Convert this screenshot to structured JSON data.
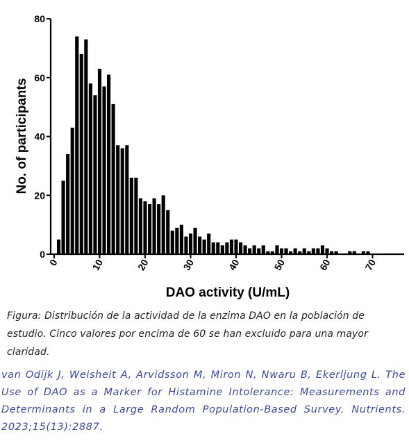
{
  "chart_data": {
    "type": "bar",
    "xlabel": "DAO activity (U/mL)",
    "ylabel": "No. of participants",
    "xlim": [
      -0.5,
      77
    ],
    "ylim": [
      0,
      80
    ],
    "x_ticks": [
      0,
      10,
      20,
      30,
      40,
      50,
      60,
      70
    ],
    "y_ticks": [
      0,
      20,
      40,
      60,
      80
    ],
    "bin_width": 1,
    "x": [
      1,
      2,
      3,
      4,
      5,
      6,
      7,
      8,
      9,
      10,
      11,
      12,
      13,
      14,
      15,
      16,
      17,
      18,
      19,
      20,
      21,
      22,
      23,
      24,
      25,
      26,
      27,
      28,
      29,
      30,
      31,
      32,
      33,
      34,
      35,
      36,
      37,
      38,
      39,
      40,
      41,
      42,
      43,
      44,
      45,
      46,
      47,
      48,
      49,
      50,
      51,
      52,
      53,
      54,
      55,
      56,
      57,
      58,
      59,
      60,
      61,
      62,
      63,
      64,
      65,
      66,
      67,
      68,
      69,
      70,
      71,
      72,
      73,
      74,
      75
    ],
    "values": [
      5,
      25,
      34,
      43,
      74,
      68,
      73,
      58,
      54,
      63,
      57,
      61,
      51,
      37,
      36,
      37,
      26,
      26,
      19,
      18,
      17,
      19,
      17,
      20,
      15,
      8,
      9,
      10,
      6,
      7,
      9,
      6,
      5,
      7,
      4,
      4,
      3,
      4,
      5,
      5,
      4,
      3,
      2,
      3,
      2,
      3,
      1,
      1,
      3,
      2,
      2,
      1,
      2,
      1,
      2,
      1,
      2,
      2,
      3,
      2,
      1,
      1,
      0,
      0,
      1,
      1,
      0,
      1,
      1,
      0,
      0,
      0,
      0,
      0,
      0
    ]
  },
  "caption": {
    "line1": "Figura: Distribución de la actividad de la enzima DAO en la población de",
    "line2": "estudio. Cinco valores por encima de 60 se han excluido para una mayor",
    "line3": "claridad."
  },
  "citation": {
    "text": "van Odijk J, Weisheit A, Arvidsson M, Miron N, Nwaru B, Ekerljung L. The Use of DAO as a Marker for Histamine Intolerance: Measurements and Determinants in a Large Random Population-Based Survey. Nutrients. 2023;15(13):2887."
  }
}
